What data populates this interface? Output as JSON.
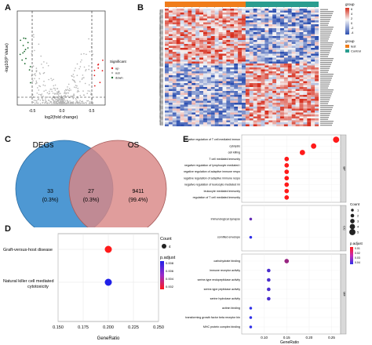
{
  "panels": {
    "A": {
      "label": "A",
      "xlabel": "log2(fold change)",
      "ylabel": "-log10(P Value)",
      "xticks": [
        "-0.5",
        "0.0",
        "0.5"
      ],
      "legend_title": "Significant",
      "legend": [
        {
          "name": "up",
          "color": "#e41a1c"
        },
        {
          "name": "not",
          "color": "#b5b5b5"
        },
        {
          "name": "down",
          "color": "#1b6b2e"
        }
      ]
    },
    "B": {
      "label": "B",
      "legend_group_title": "group",
      "legend_group": [
        {
          "name": "test",
          "color": "#f07d1a"
        },
        {
          "name": "Control",
          "color": "#2a9d8f"
        }
      ],
      "scale_values": [
        "6",
        "4",
        "2",
        "0",
        "-2",
        "-4"
      ],
      "colors": {
        "high": "#d7301f",
        "mid": "#f7f7f7",
        "low": "#2c4fb0"
      }
    },
    "C": {
      "label": "C",
      "set_left": "DEGs",
      "set_right": "OS",
      "left_only": {
        "count": "33",
        "percent": "(0.3%)"
      },
      "overlap": {
        "count": "27",
        "percent": "(0.3%)"
      },
      "right_only": {
        "count": "9411",
        "percent": "(99.4%)"
      }
    },
    "D": {
      "label": "D",
      "xlabel": "GeneRatio",
      "chart_data": {
        "type": "scatter",
        "xlabel": "GeneRatio",
        "xlim": [
          0.15,
          0.25
        ],
        "xticks": [
          "0.150",
          "0.175",
          "0.200",
          "0.225",
          "0.250"
        ],
        "categories": [
          "Graft-versus-host disease",
          "Natural killer cell mediated cytotoxicity"
        ],
        "points": [
          {
            "term": "Graft-versus-host disease",
            "x": 0.2,
            "count": 4,
            "p_adjust": 0.002
          },
          {
            "term": "Natural killer cell mediated cytotoxicity",
            "x": 0.2,
            "count": 4,
            "p_adjust": 0.008
          }
        ],
        "legend_count_title": "Count",
        "legend_count_value": "4",
        "legend_p_title": "p.adjust",
        "legend_p_ticks": [
          "0.008",
          "0.006",
          "0.004",
          "0.002"
        ]
      }
    },
    "E": {
      "label": "E",
      "xlabel": "GeneRatio",
      "chart_data": {
        "type": "scatter",
        "xlabel": "GeneRatio",
        "xlim": [
          0.05,
          0.27
        ],
        "xticks": [
          "0.10",
          "0.15",
          "0.20",
          "0.25"
        ],
        "facets": [
          {
            "name": "BP",
            "terms": [
              {
                "term": "negative regulation of T cell mediated immunity",
                "x": 0.26,
                "count": 5,
                "p_adjust": 0.01
              },
              {
                "term": "cytolysis",
                "x": 0.21,
                "count": 4,
                "p_adjust": 0.01
              },
              {
                "term": "cell killing",
                "x": 0.185,
                "count": 4,
                "p_adjust": 0.01
              },
              {
                "term": "T cell mediated immunity",
                "x": 0.15,
                "count": 3,
                "p_adjust": 0.01
              },
              {
                "term": "negative regulation of lymphocyte mediated immunity",
                "x": 0.15,
                "count": 3,
                "p_adjust": 0.01
              },
              {
                "term": "negative regulation of adaptive immune response based on somatic recombination of immune receptors built from immunoglobulin superfamily domains",
                "x": 0.15,
                "count": 3,
                "p_adjust": 0.01
              },
              {
                "term": "negative regulation of adaptive immune response",
                "x": 0.15,
                "count": 3,
                "p_adjust": 0.01
              },
              {
                "term": "negative regulation of leukocyte mediated immunity",
                "x": 0.15,
                "count": 3,
                "p_adjust": 0.01
              },
              {
                "term": "leukocyte mediated immunity",
                "x": 0.15,
                "count": 3,
                "p_adjust": 0.01
              },
              {
                "term": "regulation of T cell mediated immunity",
                "x": 0.15,
                "count": 3,
                "p_adjust": 0.01
              }
            ]
          },
          {
            "name": "CC",
            "terms": [
              {
                "term": "immunological synapse",
                "x": 0.07,
                "count": 1,
                "p_adjust": 0.04
              },
              {
                "term": "cornified envelope",
                "x": 0.07,
                "count": 1,
                "p_adjust": 0.05
              }
            ]
          },
          {
            "name": "MF",
            "terms": [
              {
                "term": "carbohydrate binding",
                "x": 0.15,
                "count": 3,
                "p_adjust": 0.03
              },
              {
                "term": "immune receptor activity",
                "x": 0.11,
                "count": 2,
                "p_adjust": 0.045
              },
              {
                "term": "serine-type endopeptidase activity",
                "x": 0.11,
                "count": 2,
                "p_adjust": 0.045
              },
              {
                "term": "serine-type peptidase activity",
                "x": 0.11,
                "count": 2,
                "p_adjust": 0.045
              },
              {
                "term": "serine hydrolase activity",
                "x": 0.11,
                "count": 2,
                "p_adjust": 0.045
              },
              {
                "term": "actinin binding",
                "x": 0.07,
                "count": 1,
                "p_adjust": 0.05
              },
              {
                "term": "transforming growth factor beta receptor binding",
                "x": 0.07,
                "count": 1,
                "p_adjust": 0.05
              },
              {
                "term": "MHC protein complex binding",
                "x": 0.07,
                "count": 1,
                "p_adjust": 0.05
              }
            ]
          }
        ],
        "legend_count_title": "Count",
        "legend_count_values": [
          "1",
          "2",
          "3",
          "4",
          "5"
        ],
        "legend_p_title": "p.adjust",
        "legend_p_ticks": [
          "0.01",
          "0.02",
          "0.03",
          "0.04"
        ]
      }
    }
  }
}
